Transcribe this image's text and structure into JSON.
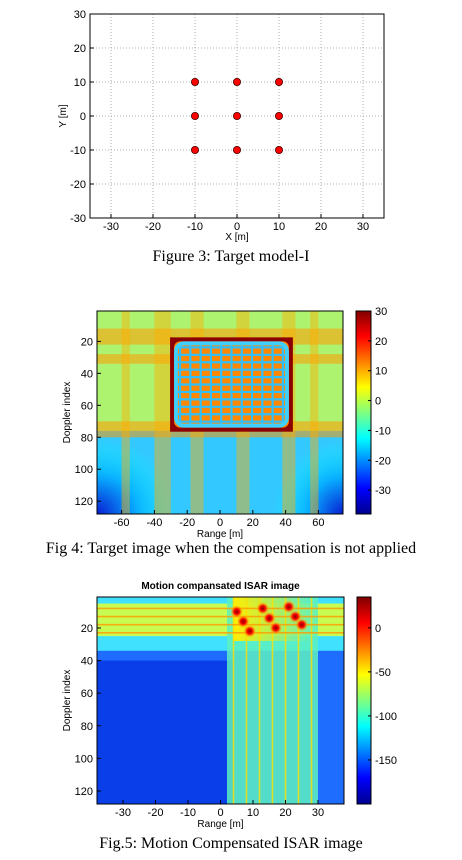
{
  "captions": {
    "fig3": "Figure 3: Target model-I",
    "fig4": "Fig 4: Target image when the compensation is not applied",
    "fig5": "Fig.5: Motion Compensated ISAR image"
  },
  "chart_data": [
    {
      "type": "scatter",
      "title": "",
      "xlabel": "X [m]",
      "ylabel": "Y [m]",
      "xlim": [
        -35,
        35
      ],
      "ylim": [
        -30,
        30
      ],
      "xticks": [
        -30,
        -20,
        -10,
        0,
        10,
        20,
        30
      ],
      "yticks": [
        30,
        20,
        10,
        0,
        -10,
        -20,
        -30
      ],
      "grid": true,
      "marker_color": "#ff0000",
      "points": [
        {
          "x": -10,
          "y": 10
        },
        {
          "x": 0,
          "y": 10
        },
        {
          "x": 10,
          "y": 10
        },
        {
          "x": -10,
          "y": 0
        },
        {
          "x": 0,
          "y": 0
        },
        {
          "x": 10,
          "y": 0
        },
        {
          "x": -10,
          "y": -10
        },
        {
          "x": 0,
          "y": -10
        },
        {
          "x": 10,
          "y": -10
        }
      ]
    },
    {
      "type": "heatmap",
      "title": "",
      "xlabel": "Range [m]",
      "ylabel": "Doppler index",
      "xlim": [
        -75,
        75
      ],
      "ylim": [
        1,
        128
      ],
      "xticks": [
        -60,
        -40,
        -20,
        0,
        20,
        40,
        60
      ],
      "yticks": [
        20,
        40,
        60,
        80,
        100,
        120
      ],
      "colorbar": {
        "range": [
          -38,
          30
        ],
        "ticks": [
          30,
          20,
          10,
          0,
          -10,
          -20,
          -30
        ]
      },
      "colormap": "jet",
      "description_values": {
        "bright_box_range": [
          -28,
          42
        ],
        "bright_box_doppler": [
          20,
          74
        ],
        "grid_lines": 10
      }
    },
    {
      "type": "heatmap",
      "title": "Motion compansated ISAR image",
      "xlabel": "Range [m]",
      "ylabel": "Doppler index",
      "xlim": [
        -38,
        38
      ],
      "ylim": [
        1,
        128
      ],
      "xticks": [
        -30,
        -20,
        -10,
        0,
        10,
        20,
        30
      ],
      "yticks": [
        20,
        40,
        60,
        80,
        100,
        120
      ],
      "colorbar": {
        "range": [
          -200,
          35
        ],
        "ticks": [
          0,
          -50,
          -100,
          -150
        ]
      },
      "colormap": "jet",
      "scatterers": [
        {
          "range": 5,
          "doppler": 10
        },
        {
          "range": 13,
          "doppler": 8
        },
        {
          "range": 21,
          "doppler": 7
        },
        {
          "range": 7,
          "doppler": 16
        },
        {
          "range": 15,
          "doppler": 14
        },
        {
          "range": 23,
          "doppler": 13
        },
        {
          "range": 9,
          "doppler": 22
        },
        {
          "range": 17,
          "doppler": 20
        },
        {
          "range": 25,
          "doppler": 18
        }
      ]
    }
  ]
}
